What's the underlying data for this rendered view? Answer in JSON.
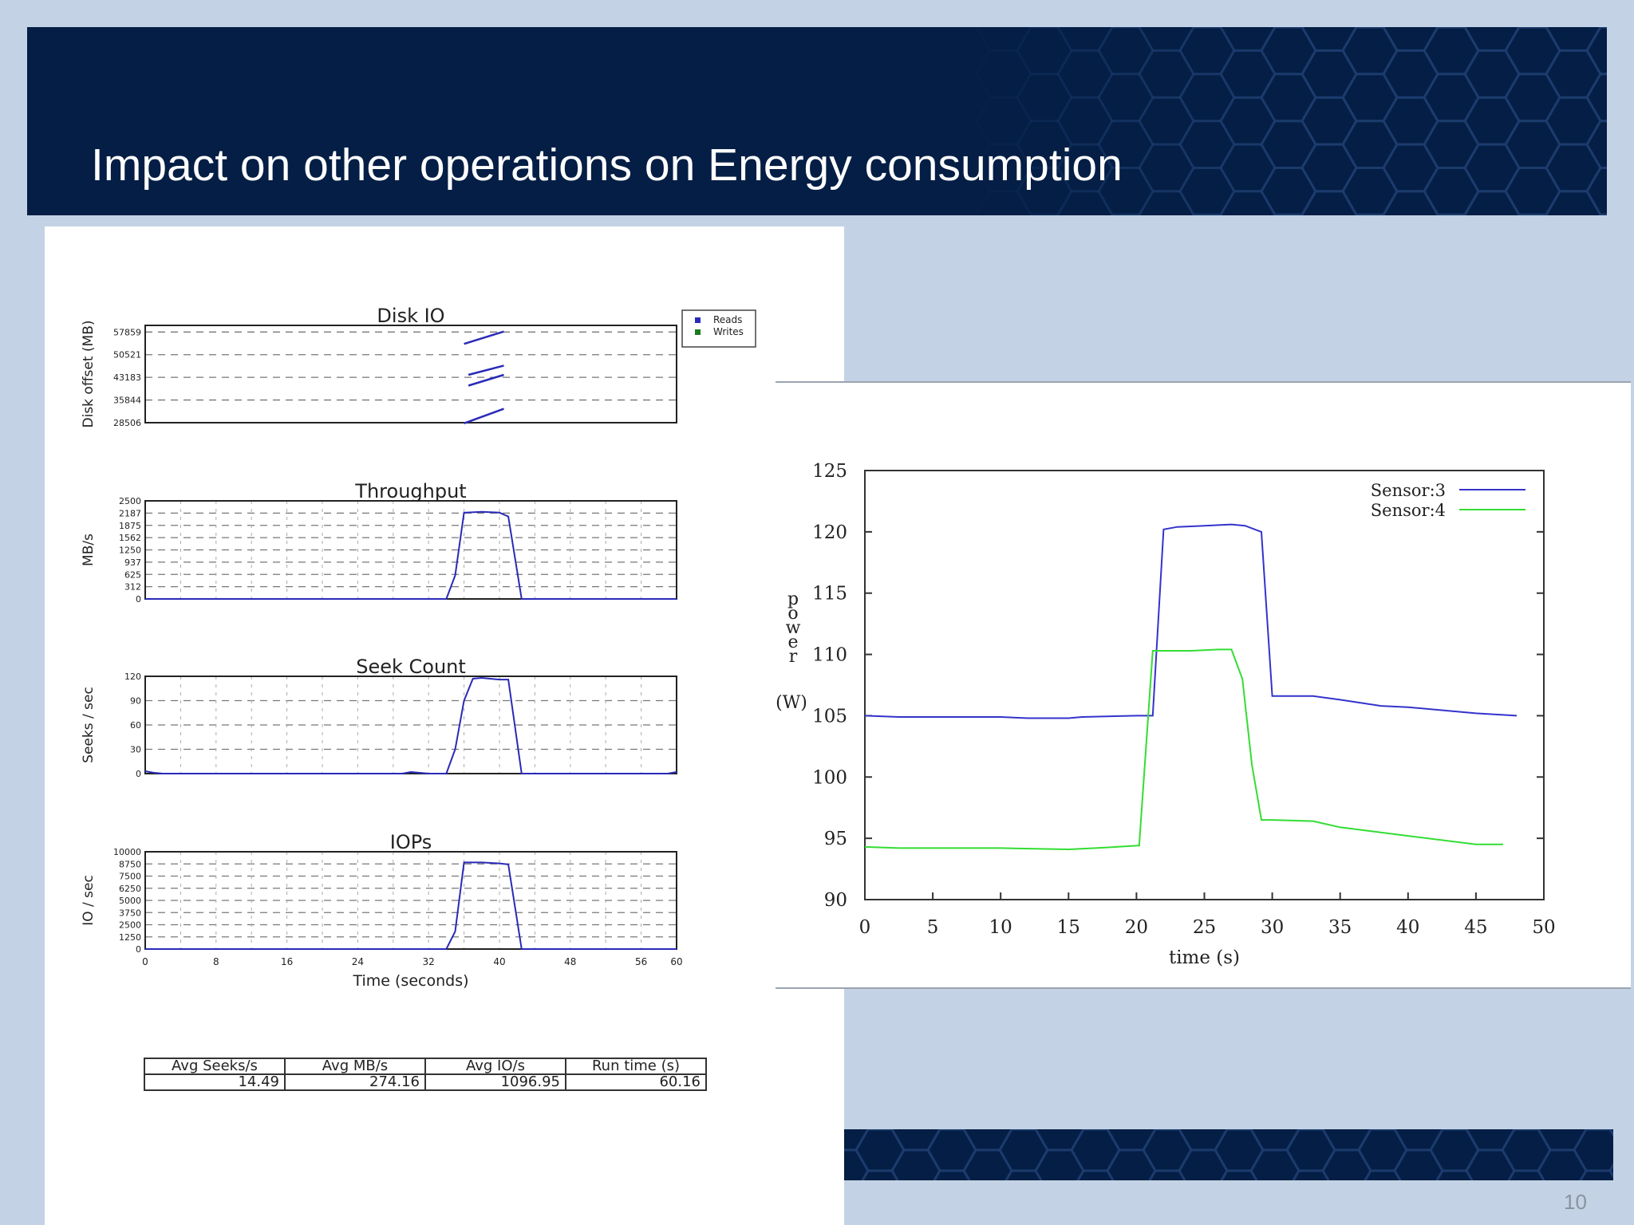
{
  "slide": {
    "title": "Impact on other operations on Energy consumption",
    "page_number": "10",
    "colors": {
      "header": "#041e45",
      "background": "#c3d3e5",
      "reads": "#2a2ab8",
      "sensor3": "#3333cc",
      "sensor4": "#33dd33"
    }
  },
  "stats_table": {
    "headers": [
      "Avg Seeks/s",
      "Avg MB/s",
      "Avg IO/s",
      "Run time (s)"
    ],
    "values": [
      "14.49",
      "274.16",
      "1096.95",
      "60.16"
    ]
  },
  "chart_data": [
    {
      "type": "line",
      "title": "Disk IO",
      "ylabel": "Disk offset (MB)",
      "xlim": [
        0,
        60
      ],
      "ylim": [
        28506,
        60000
      ],
      "yticks": [
        "57859",
        "50521",
        "43183",
        "35844",
        "28506"
      ],
      "ytick_values": [
        57859,
        50521,
        43183,
        35844,
        28506
      ],
      "grid": true,
      "legend": {
        "placement": "outside-top-right",
        "entries": [
          "Reads",
          "Writes"
        ]
      },
      "series": [
        {
          "name": "Reads",
          "segments": [
            {
              "x": [
                36,
                40.5
              ],
              "y": [
                54000,
                58000
              ]
            },
            {
              "x": [
                36.5,
                40.5
              ],
              "y": [
                44000,
                47000
              ]
            },
            {
              "x": [
                36.5,
                40.5
              ],
              "y": [
                40500,
                44000
              ]
            },
            {
              "x": [
                36,
                40.5
              ],
              "y": [
                28300,
                33000
              ]
            }
          ]
        },
        {
          "name": "Writes",
          "segments": []
        }
      ]
    },
    {
      "type": "line",
      "title": "Throughput",
      "ylabel": "MB/s",
      "xlim": [
        0,
        60
      ],
      "ylim": [
        0,
        2500
      ],
      "yticks": [
        "2500",
        "2187",
        "1875",
        "1562",
        "1250",
        "937",
        "625",
        "312",
        "0"
      ],
      "ytick_values": [
        2500,
        2187,
        1875,
        1562,
        1250,
        937,
        625,
        312,
        0
      ],
      "grid": true,
      "series": [
        {
          "name": "",
          "x": [
            0,
            34,
            35,
            36,
            38,
            40,
            41,
            42.5,
            60
          ],
          "y": [
            0,
            0,
            600,
            2200,
            2220,
            2200,
            2100,
            0,
            0
          ]
        }
      ]
    },
    {
      "type": "line",
      "title": "Seek Count",
      "ylabel": "Seeks / sec",
      "xlim": [
        0,
        60
      ],
      "ylim": [
        0,
        120
      ],
      "yticks": [
        "120",
        "90",
        "60",
        "30",
        "0"
      ],
      "ytick_values": [
        120,
        90,
        60,
        30,
        0
      ],
      "grid": true,
      "series": [
        {
          "name": "",
          "x": [
            0,
            1,
            2,
            29,
            30,
            31,
            32,
            34,
            35,
            36,
            37,
            38,
            40,
            41,
            42.5,
            59,
            60
          ],
          "y": [
            3,
            1,
            0,
            0,
            2,
            1,
            0,
            0,
            30,
            90,
            117,
            118,
            116,
            116,
            0,
            0,
            2
          ]
        }
      ]
    },
    {
      "type": "line",
      "title": "IOPs",
      "ylabel": "IO / sec",
      "xlabel": "Time (seconds)",
      "xlim": [
        0,
        60
      ],
      "ylim": [
        0,
        10000
      ],
      "xticks": [
        "0",
        "8",
        "16",
        "24",
        "32",
        "40",
        "48",
        "56",
        "60"
      ],
      "xtick_values": [
        0,
        8,
        16,
        24,
        32,
        40,
        48,
        56,
        60
      ],
      "yticks": [
        "10000",
        "8750",
        "7500",
        "6250",
        "5000",
        "3750",
        "2500",
        "1250",
        "0"
      ],
      "ytick_values": [
        10000,
        8750,
        7500,
        6250,
        5000,
        3750,
        2500,
        1250,
        0
      ],
      "grid": true,
      "series": [
        {
          "name": "",
          "x": [
            0,
            34,
            35,
            36,
            38,
            40,
            41,
            42.5,
            60
          ],
          "y": [
            0,
            0,
            1800,
            8900,
            8900,
            8800,
            8700,
            0,
            0
          ]
        }
      ]
    },
    {
      "type": "line",
      "title": "",
      "xlabel": "time (s)",
      "ylabel": "power (W)",
      "xlim": [
        0,
        50
      ],
      "ylim": [
        90,
        125
      ],
      "xticks": [
        "0",
        "5",
        "10",
        "15",
        "20",
        "25",
        "30",
        "35",
        "40",
        "45",
        "50"
      ],
      "xtick_values": [
        0,
        5,
        10,
        15,
        20,
        25,
        30,
        35,
        40,
        45,
        50
      ],
      "yticks": [
        "125",
        "120",
        "115",
        "110",
        "105",
        "100",
        "95",
        "90"
      ],
      "ytick_values": [
        125,
        120,
        115,
        110,
        105,
        100,
        95,
        90
      ],
      "grid": false,
      "legend": {
        "placement": "top-right",
        "entries": [
          "Sensor:3",
          "Sensor:4"
        ]
      },
      "series": [
        {
          "name": "Sensor:3",
          "x": [
            0,
            2.5,
            10,
            12,
            15,
            16,
            20,
            21.2,
            22,
            23,
            25,
            27,
            28,
            29.2,
            30,
            33,
            35,
            38,
            40,
            45,
            48
          ],
          "y": [
            105,
            104.9,
            104.9,
            104.8,
            104.8,
            104.9,
            105,
            105,
            120.2,
            120.4,
            120.5,
            120.6,
            120.5,
            120,
            106.6,
            106.6,
            106.3,
            105.8,
            105.7,
            105.2,
            105
          ]
        },
        {
          "name": "Sensor:4",
          "x": [
            0,
            2.5,
            10,
            15,
            17,
            20,
            20.2,
            21.2,
            22,
            24,
            26,
            27,
            27.8,
            28.5,
            29.2,
            30,
            33,
            35,
            40,
            45,
            47
          ],
          "y": [
            94.3,
            94.2,
            94.2,
            94.1,
            94.2,
            94.4,
            94.4,
            110.3,
            110.3,
            110.3,
            110.4,
            110.4,
            108,
            101,
            96.5,
            96.5,
            96.4,
            95.9,
            95.2,
            94.5,
            94.5
          ]
        }
      ]
    }
  ]
}
